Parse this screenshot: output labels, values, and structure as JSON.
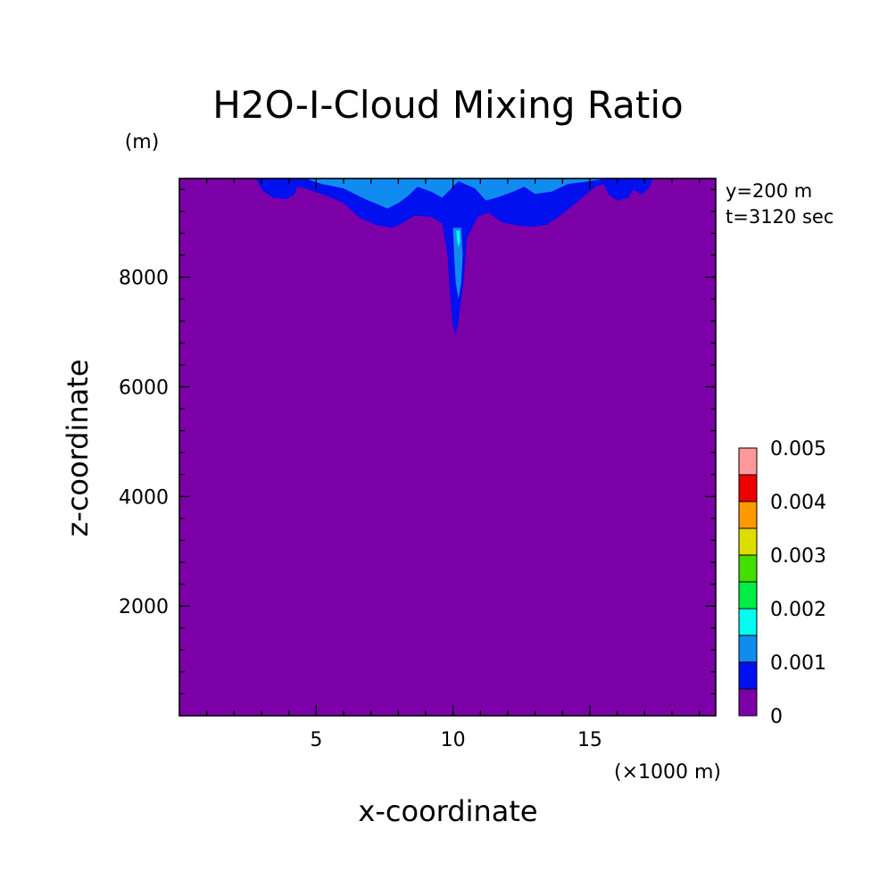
{
  "chart_data": {
    "type": "heatmap",
    "title": "H2O-I-Cloud Mixing Ratio",
    "xlabel": "x-coordinate",
    "ylabel": "z-coordinate",
    "x_unit": "(×1000 m)",
    "y_unit": "(m)",
    "annotations": [
      "y=200 m",
      "t=3120 sec"
    ],
    "xlim": [
      0,
      19.6
    ],
    "ylim": [
      0,
      9800
    ],
    "x_ticks": [
      5,
      10,
      15
    ],
    "y_ticks": [
      2000,
      4000,
      6000,
      8000
    ],
    "grid": false,
    "legend_position": "right",
    "colorbar": {
      "levels": [
        0,
        0.0005,
        0.001,
        0.0015,
        0.002,
        0.0025,
        0.003,
        0.0035,
        0.004,
        0.0045,
        0.005
      ],
      "tick_labels": [
        "0",
        "0.001",
        "0.002",
        "0.003",
        "0.004",
        "0.005"
      ],
      "tick_values": [
        0,
        0.001,
        0.002,
        0.003,
        0.004,
        0.005
      ],
      "colors": [
        "#7b00a8",
        "#0010ee",
        "#108cf0",
        "#00ffee",
        "#00ee44",
        "#44dd00",
        "#dddd00",
        "#ff9900",
        "#ee0000",
        "#ff9999"
      ]
    },
    "background_value": 0,
    "features": [
      {
        "level": 0.0005,
        "color": "#0010ee",
        "outline": [
          [
            2.8,
            9800
          ],
          [
            3.0,
            9600
          ],
          [
            3.4,
            9450
          ],
          [
            3.9,
            9420
          ],
          [
            4.2,
            9500
          ],
          [
            4.3,
            9650
          ],
          [
            4.6,
            9620
          ],
          [
            5.4,
            9480
          ],
          [
            6.0,
            9350
          ],
          [
            6.6,
            9080
          ],
          [
            7.2,
            8950
          ],
          [
            7.8,
            8900
          ],
          [
            8.2,
            9000
          ],
          [
            8.6,
            9120
          ],
          [
            9.2,
            9100
          ],
          [
            9.6,
            8980
          ],
          [
            9.8,
            8400
          ],
          [
            9.9,
            7600
          ],
          [
            10.0,
            7100
          ],
          [
            10.1,
            6950
          ],
          [
            10.2,
            7200
          ],
          [
            10.4,
            8000
          ],
          [
            10.5,
            8700
          ],
          [
            10.9,
            9100
          ],
          [
            11.3,
            9180
          ],
          [
            11.8,
            9000
          ],
          [
            12.3,
            8950
          ],
          [
            12.8,
            8920
          ],
          [
            13.4,
            8950
          ],
          [
            14.0,
            9150
          ],
          [
            14.6,
            9400
          ],
          [
            15.2,
            9650
          ],
          [
            15.5,
            9700
          ],
          [
            15.7,
            9500
          ],
          [
            16.0,
            9400
          ],
          [
            16.4,
            9450
          ],
          [
            16.6,
            9600
          ],
          [
            16.9,
            9500
          ],
          [
            17.2,
            9650
          ],
          [
            17.3,
            9800
          ]
        ]
      },
      {
        "level": 0.001,
        "color": "#108cf0",
        "outline": [
          [
            4.6,
            9800
          ],
          [
            5.2,
            9700
          ],
          [
            6.0,
            9620
          ],
          [
            6.8,
            9420
          ],
          [
            7.3,
            9320
          ],
          [
            7.6,
            9250
          ],
          [
            8.0,
            9350
          ],
          [
            8.4,
            9500
          ],
          [
            8.7,
            9650
          ],
          [
            9.2,
            9560
          ],
          [
            9.6,
            9450
          ],
          [
            10.2,
            9750
          ],
          [
            10.8,
            9620
          ],
          [
            11.2,
            9400
          ],
          [
            11.6,
            9450
          ],
          [
            12.2,
            9560
          ],
          [
            12.6,
            9650
          ],
          [
            13.0,
            9520
          ],
          [
            13.6,
            9560
          ],
          [
            14.2,
            9700
          ],
          [
            15.0,
            9750
          ],
          [
            15.6,
            9800
          ]
        ]
      },
      {
        "level": 0.001,
        "color": "#108cf0",
        "outline": [
          [
            10.0,
            8900
          ],
          [
            10.05,
            8300
          ],
          [
            10.1,
            7900
          ],
          [
            10.2,
            7600
          ],
          [
            10.3,
            7900
          ],
          [
            10.35,
            8400
          ],
          [
            10.3,
            8900
          ]
        ]
      },
      {
        "level": 0.0015,
        "color": "#00ffee",
        "outline": [
          [
            10.12,
            8850
          ],
          [
            10.15,
            8650
          ],
          [
            10.2,
            8550
          ],
          [
            10.26,
            8650
          ],
          [
            10.24,
            8850
          ]
        ]
      }
    ]
  }
}
